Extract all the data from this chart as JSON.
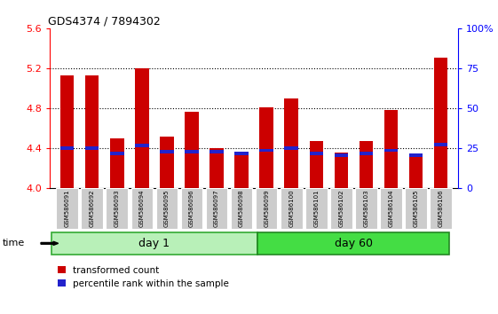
{
  "title": "GDS4374 / 7894302",
  "samples": [
    "GSM586091",
    "GSM586092",
    "GSM586093",
    "GSM586094",
    "GSM586095",
    "GSM586096",
    "GSM586097",
    "GSM586098",
    "GSM586099",
    "GSM586100",
    "GSM586101",
    "GSM586102",
    "GSM586103",
    "GSM586104",
    "GSM586105",
    "GSM586106"
  ],
  "red_values": [
    5.13,
    5.13,
    4.5,
    5.2,
    4.52,
    4.77,
    4.4,
    4.35,
    4.81,
    4.9,
    4.47,
    4.36,
    4.47,
    4.78,
    4.32,
    5.31
  ],
  "blue_values": [
    4.4,
    4.4,
    4.35,
    4.43,
    4.37,
    4.37,
    4.37,
    4.35,
    4.38,
    4.4,
    4.35,
    4.33,
    4.35,
    4.38,
    4.33,
    4.44
  ],
  "day1_count": 8,
  "day60_count": 8,
  "ymin": 4.0,
  "ymax": 5.6,
  "yticks_left": [
    4.0,
    4.4,
    4.8,
    5.2,
    5.6
  ],
  "yticks_right": [
    0,
    25,
    50,
    75,
    100
  ],
  "bar_color": "#cc0000",
  "blue_color": "#2222cc",
  "day1_color": "#b8f0b8",
  "day60_color": "#44dd44",
  "day1_label": "day 1",
  "day60_label": "day 60",
  "legend_red": "transformed count",
  "legend_blue": "percentile rank within the sample",
  "time_label": "time",
  "gridlines": [
    4.4,
    4.8,
    5.2
  ],
  "bar_width": 0.55,
  "blue_bar_height": 0.035
}
